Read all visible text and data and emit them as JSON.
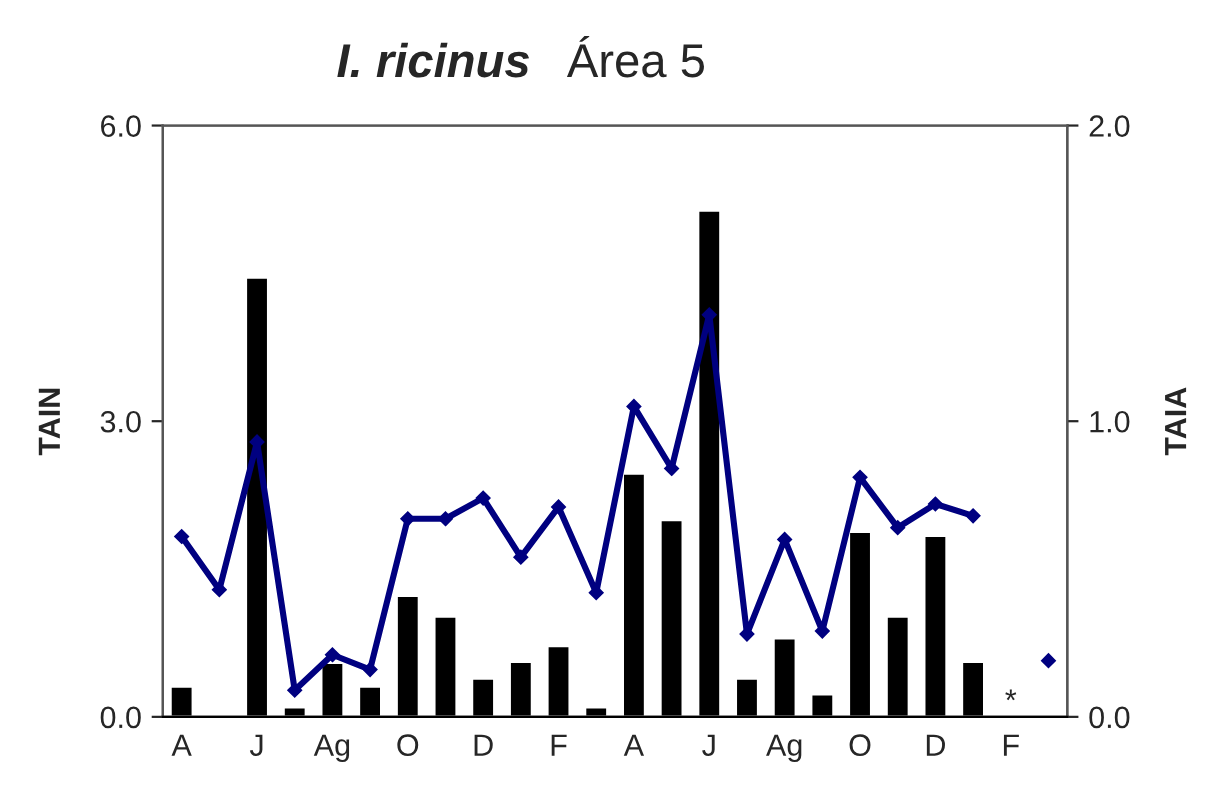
{
  "chart_data": {
    "type": "bar",
    "title": "I. ricinus",
    "subtitle": "Área 5",
    "ylabel": "TAIN",
    "y2label": "TAIA",
    "categories": [
      "A",
      null,
      "J",
      null,
      "Ag",
      null,
      "O",
      null,
      "D",
      null,
      "F",
      null,
      "A",
      null,
      "J",
      null,
      "Ag",
      null,
      "O",
      null,
      "D",
      null,
      "F",
      null
    ],
    "series": [
      {
        "color": "#000000",
        "values": [
          0.31,
          null,
          4.46,
          0.1,
          0.55,
          0.31,
          1.23,
          1.02,
          0.39,
          0.56,
          0.72,
          0.1,
          2.47,
          2.0,
          5.14,
          0.39,
          0.8,
          0.23,
          1.88,
          1.02,
          1.84,
          0.56,
          null,
          null
        ]
      },
      {
        "type": "line",
        "axis": "y2",
        "color": "#000080",
        "marker": "diamond",
        "values": [
          0.61,
          0.43,
          0.93,
          0.09,
          0.21,
          0.16,
          0.67,
          0.67,
          0.74,
          0.54,
          0.71,
          0.42,
          1.05,
          0.84,
          1.36,
          0.28,
          0.6,
          0.29,
          0.81,
          0.64,
          0.72,
          0.68,
          null,
          0.19
        ]
      }
    ],
    "ylim": [
      0,
      6
    ],
    "yticks": [
      {
        "value": 0,
        "label": "0.0"
      },
      {
        "value": 3,
        "label": "3.0"
      },
      {
        "value": 6,
        "label": "6.0"
      }
    ],
    "y2lim": [
      0,
      2
    ],
    "y2ticks": [
      {
        "value": 0,
        "label": "0.0"
      },
      {
        "value": 1,
        "label": "1.0"
      },
      {
        "value": 2,
        "label": "2.0"
      }
    ],
    "annotations": [
      "*"
    ],
    "grid": false,
    "legend": false
  }
}
